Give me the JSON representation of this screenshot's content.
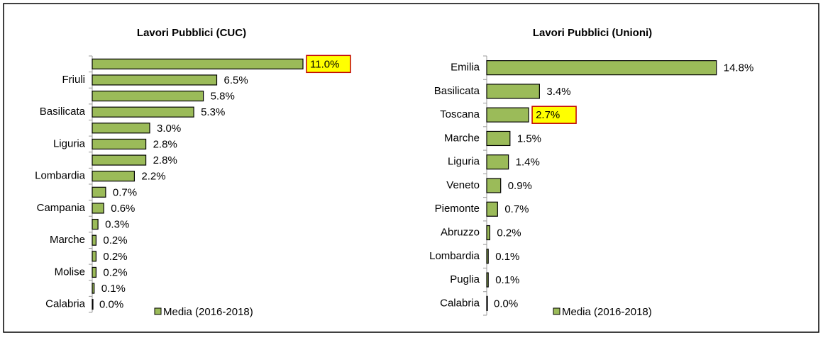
{
  "chart_data": [
    {
      "type": "bar",
      "orientation": "horizontal",
      "title": "Lavori Pubblici (CUC)",
      "categories": [
        null,
        "Friuli",
        null,
        "Basilicata",
        null,
        "Liguria",
        null,
        "Lombardia",
        null,
        "Campania",
        null,
        "Marche",
        null,
        "Molise",
        null,
        "Calabria"
      ],
      "series": [
        {
          "name": "Media (2016-2018)",
          "color": "#9bbb59",
          "values": [
            11.0,
            6.5,
            5.8,
            5.3,
            3.0,
            2.8,
            2.8,
            2.2,
            0.7,
            0.6,
            0.3,
            0.2,
            0.2,
            0.2,
            0.1,
            0.0
          ],
          "value_labels": [
            "11.0%",
            "6.5%",
            "5.8%",
            "5.3%",
            "3.0%",
            "2.8%",
            "2.8%",
            "2.2%",
            "0.7%",
            "0.6%",
            "0.3%",
            "0.2%",
            "0.2%",
            "0.2%",
            "0.1%",
            "0.0%"
          ]
        }
      ],
      "xlim": [
        0,
        12
      ],
      "highlight_index": 0,
      "legend": "bottom"
    },
    {
      "type": "bar",
      "orientation": "horizontal",
      "title": "Lavori Pubblici (Unioni)",
      "categories": [
        "Emilia",
        "Basilicata",
        "Toscana",
        "Marche",
        "Liguria",
        "Veneto",
        "Piemonte",
        "Abruzzo",
        "Lombardia",
        "Puglia",
        "Calabria"
      ],
      "series": [
        {
          "name": "Media (2016-2018)",
          "color": "#9bbb59",
          "values": [
            14.8,
            3.4,
            2.7,
            1.5,
            1.4,
            0.9,
            0.7,
            0.2,
            0.1,
            0.1,
            0.0
          ],
          "value_labels": [
            "14.8%",
            "3.4%",
            "2.7%",
            "1.5%",
            "1.4%",
            "0.9%",
            "0.7%",
            "0.2%",
            "0.1%",
            "0.1%",
            "0.0%"
          ]
        }
      ],
      "xlim": [
        0,
        16
      ],
      "highlight_index": 2,
      "legend": "bottom"
    }
  ]
}
